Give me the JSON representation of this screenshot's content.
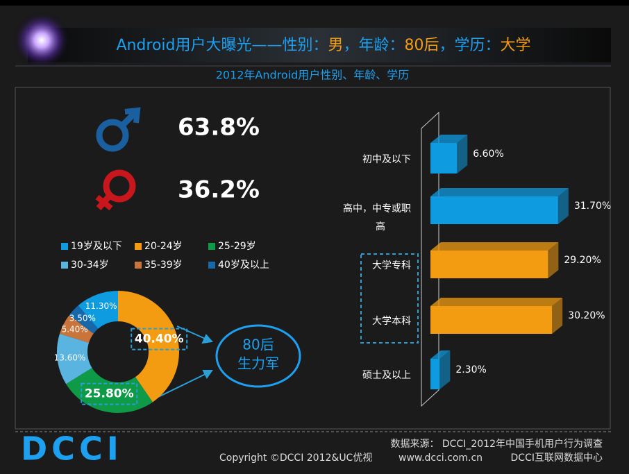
{
  "header": {
    "title": [
      {
        "text": "Android用户大曝光——性别：",
        "color": "#1ea0f0"
      },
      {
        "text": "男",
        "color": "#f39c12"
      },
      {
        "text": "，年龄：",
        "color": "#1ea0f0"
      },
      {
        "text": "80后",
        "color": "#f39c12"
      },
      {
        "text": "，学历：",
        "color": "#1ea0f0"
      },
      {
        "text": "大学",
        "color": "#f39c12"
      }
    ],
    "subtitle": "2012年Android用户性别、年龄、学历"
  },
  "gender": {
    "male": "63.8%",
    "female": "36.2%"
  },
  "callout": [
    "80后",
    "生力军"
  ],
  "chart_data": [
    {
      "type": "donut",
      "categories": [
        "19岁及以下",
        "20-24岁",
        "25-29岁",
        "30-34岁",
        "35-39岁",
        "40岁及以上"
      ],
      "values": [
        11.3,
        40.4,
        25.8,
        13.6,
        5.4,
        3.5
      ],
      "value_labels": [
        "11.30%",
        "40.40%",
        "25.80%",
        "13.60%",
        "5.40%",
        "3.50%"
      ],
      "colors": [
        "#0f9be0",
        "#f39c12",
        "#0f9a48",
        "#5ab4e0",
        "#c8743a",
        "#1768a8"
      ]
    },
    {
      "type": "bar",
      "orientation": "horizontal",
      "categories": [
        "初中及以下",
        "高中，中专或职高",
        "大学专科",
        "大学本科",
        "硕士及以上"
      ],
      "values": [
        6.6,
        31.7,
        29.2,
        30.2,
        2.3
      ],
      "value_labels": [
        "6.60%",
        "31.70%",
        "29.20%",
        "30.20%",
        "2.30%"
      ],
      "colors": [
        "#0f9be0",
        "#0f9be0",
        "#f39c12",
        "#f39c12",
        "#0f9be0"
      ]
    }
  ],
  "footer": {
    "logo": "DCCI",
    "source": "数据来源：  DCCI_2012年中国手机用户行为调查",
    "copyright": "Copyright ©DCCI 2012&UC优视",
    "url": "www.dcci.com.cn",
    "org": "DCCI互联网数据中心"
  }
}
